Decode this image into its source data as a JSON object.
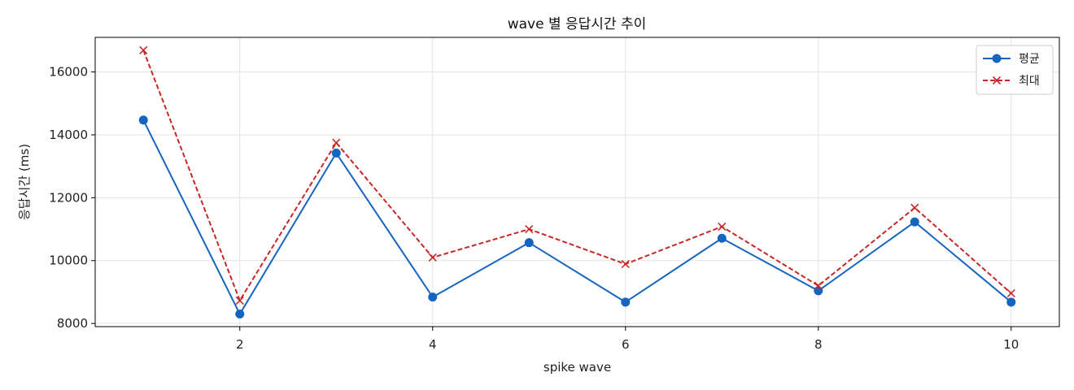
{
  "chart_data": {
    "type": "line",
    "title": "wave 별 응답시간 추이",
    "xlabel": "spike wave",
    "ylabel": "응답시간 (ms)",
    "x": [
      1,
      2,
      3,
      4,
      5,
      6,
      7,
      8,
      9,
      10
    ],
    "xticks": [
      "2",
      "4",
      "6",
      "8",
      "10"
    ],
    "yticks": [
      "8000",
      "10000",
      "12000",
      "14000",
      "16000"
    ],
    "xlim": [
      0.5,
      10.5
    ],
    "ylim": [
      7900,
      17100
    ],
    "grid": true,
    "legend_position": "top-right",
    "series": [
      {
        "name": "평균",
        "color": "#1565c0",
        "marker": "circle",
        "line_style": "solid",
        "values": [
          14470,
          8300,
          13420,
          8840,
          10570,
          8680,
          10710,
          9040,
          11230,
          8680
        ]
      },
      {
        "name": "최대",
        "color": "#c62828",
        "marker": "x",
        "line_style": "dashed",
        "values": [
          16690,
          8730,
          13750,
          10100,
          11000,
          9890,
          11080,
          9200,
          11680,
          8960
        ]
      }
    ]
  }
}
